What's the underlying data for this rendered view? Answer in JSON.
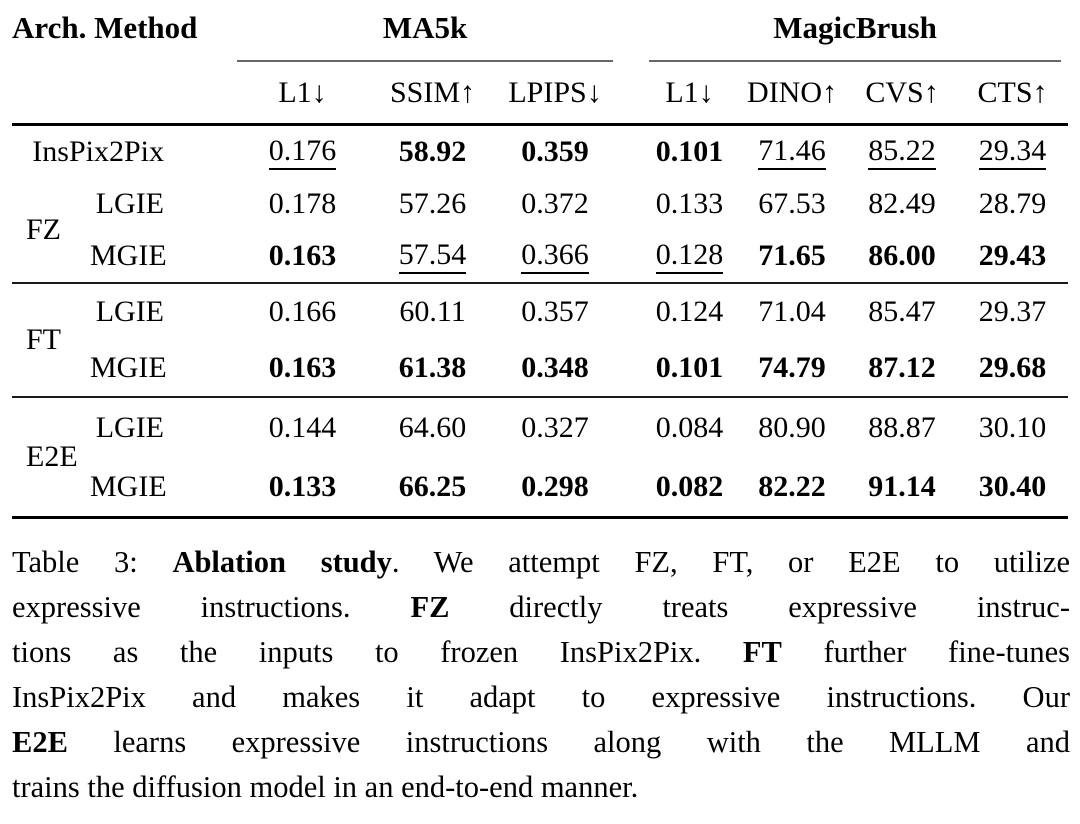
{
  "table": {
    "header": {
      "arch_method": "Arch. Method",
      "groups": [
        {
          "label": "MA5k",
          "cols": [
            "L1↓",
            "SSIM↑",
            "LPIPS↓"
          ]
        },
        {
          "label": "MagicBrush",
          "cols": [
            "L1↓",
            "DINO↑",
            "CVS↑",
            "CTS↑"
          ]
        }
      ]
    },
    "blocks": [
      {
        "arch": "FZ",
        "rows": [
          {
            "method": "InsPix2Pix",
            "cells": [
              {
                "v": "0.176",
                "f": "u"
              },
              {
                "v": "58.92",
                "f": "b"
              },
              {
                "v": "0.359",
                "f": "b"
              },
              {
                "v": "0.101",
                "f": "b"
              },
              {
                "v": "71.46",
                "f": "u"
              },
              {
                "v": "85.22",
                "f": "u"
              },
              {
                "v": "29.34",
                "f": "u"
              }
            ]
          },
          {
            "method": "LGIE",
            "cells": [
              {
                "v": "0.178"
              },
              {
                "v": "57.26"
              },
              {
                "v": "0.372"
              },
              {
                "v": "0.133"
              },
              {
                "v": "67.53"
              },
              {
                "v": "82.49"
              },
              {
                "v": "28.79"
              }
            ]
          },
          {
            "method": "MGIE",
            "cells": [
              {
                "v": "0.163",
                "f": "b"
              },
              {
                "v": "57.54",
                "f": "u"
              },
              {
                "v": "0.366",
                "f": "u"
              },
              {
                "v": "0.128",
                "f": "u"
              },
              {
                "v": "71.65",
                "f": "b"
              },
              {
                "v": "86.00",
                "f": "b"
              },
              {
                "v": "29.43",
                "f": "b"
              }
            ]
          }
        ]
      },
      {
        "arch": "FT",
        "rows": [
          {
            "method": "LGIE",
            "cells": [
              {
                "v": "0.166"
              },
              {
                "v": "60.11"
              },
              {
                "v": "0.357"
              },
              {
                "v": "0.124"
              },
              {
                "v": "71.04"
              },
              {
                "v": "85.47"
              },
              {
                "v": "29.37"
              }
            ]
          },
          {
            "method": "MGIE",
            "cells": [
              {
                "v": "0.163",
                "f": "b"
              },
              {
                "v": "61.38",
                "f": "b"
              },
              {
                "v": "0.348",
                "f": "b"
              },
              {
                "v": "0.101",
                "f": "b"
              },
              {
                "v": "74.79",
                "f": "b"
              },
              {
                "v": "87.12",
                "f": "b"
              },
              {
                "v": "29.68",
                "f": "b"
              }
            ]
          }
        ]
      },
      {
        "arch": "E2E",
        "rows": [
          {
            "method": "LGIE",
            "cells": [
              {
                "v": "0.144"
              },
              {
                "v": "64.60"
              },
              {
                "v": "0.327"
              },
              {
                "v": "0.084"
              },
              {
                "v": "80.90"
              },
              {
                "v": "88.87"
              },
              {
                "v": "30.10"
              }
            ]
          },
          {
            "method": "MGIE",
            "cells": [
              {
                "v": "0.133",
                "f": "b"
              },
              {
                "v": "66.25",
                "f": "b"
              },
              {
                "v": "0.298",
                "f": "b"
              },
              {
                "v": "0.082",
                "f": "b"
              },
              {
                "v": "82.22",
                "f": "b"
              },
              {
                "v": "91.14",
                "f": "b"
              },
              {
                "v": "30.40",
                "f": "b"
              }
            ]
          }
        ]
      }
    ]
  },
  "caption": {
    "lines": [
      [
        {
          "t": "Table 3: "
        },
        {
          "t": "Ablation study",
          "b": true
        },
        {
          "t": ". We attempt FZ, FT, or E2E to utilize"
        }
      ],
      [
        {
          "t": "expressive instructions. "
        },
        {
          "t": "FZ",
          "b": true
        },
        {
          "t": " directly treats expressive instruc-"
        }
      ],
      [
        {
          "t": "tions as the inputs to frozen InsPix2Pix. "
        },
        {
          "t": "FT",
          "b": true
        },
        {
          "t": " further fine-tunes"
        }
      ],
      [
        {
          "t": "InsPix2Pix and makes it adapt to expressive instructions. Our"
        }
      ],
      [
        {
          "t": "E2E",
          "b": true
        },
        {
          "t": " learns expressive instructions along with the MLLM and"
        }
      ],
      [
        {
          "t": "trains the diffusion model in an end-to-end manner."
        }
      ]
    ]
  }
}
